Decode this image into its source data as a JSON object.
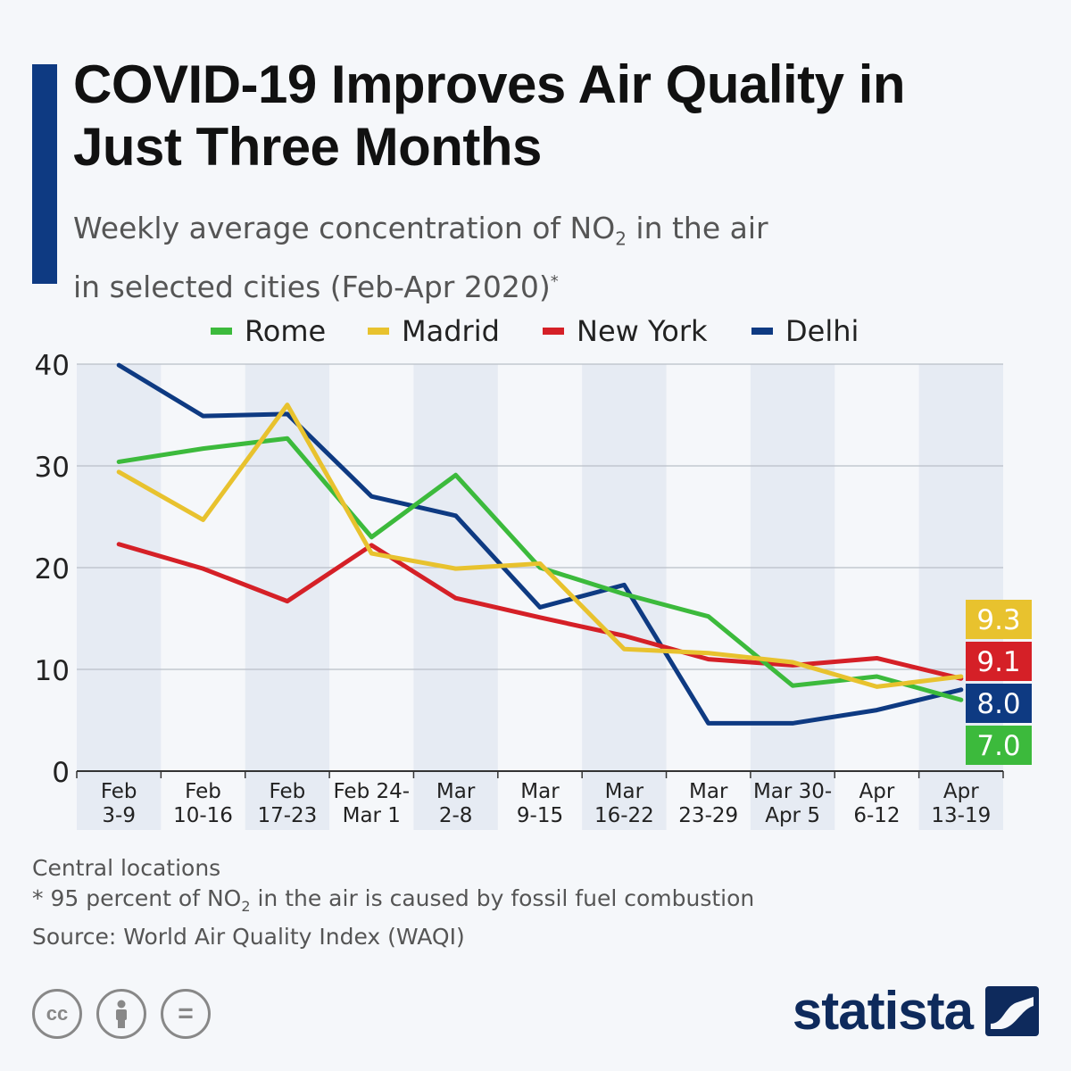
{
  "title": "COVID-19 Improves Air Quality in Just Three Months",
  "subtitle": {
    "line1_pre": "Weekly average concentration of NO",
    "line1_sub": "2",
    "line1_post": " in the air",
    "line2": "in selected cities (Feb-Apr 2020)",
    "line2_sup": "*"
  },
  "legend": [
    "Rome",
    "Madrid",
    "New York",
    "Delhi"
  ],
  "footnotes": {
    "line1": "Central locations",
    "line2_pre": "* 95 percent of NO",
    "line2_sub": "2",
    "line2_post": " in the air is caused by fossil fuel combustion",
    "line3": "Source: World Air Quality Index (WAQI)"
  },
  "brand": "statista",
  "icons": [
    "cc-icon",
    "attribution-icon",
    "no-derivatives-icon"
  ],
  "icon_text": {
    "cc": "cc",
    "nd": "="
  },
  "colors": {
    "accent": "#0e3a82",
    "Rome": "#3cba3c",
    "Madrid": "#e8c22e",
    "New York": "#d52027",
    "Delhi": "#0e3a82",
    "band": "#e6ebf3"
  },
  "chart_data": {
    "type": "line",
    "categories": [
      "Feb 3-9",
      "Feb 10-16",
      "Feb 17-23",
      "Feb 24-Mar 1",
      "Mar 2-8",
      "Mar 9-15",
      "Mar 16-22",
      "Mar 23-29",
      "Mar 30-Apr 5",
      "Apr 6-12",
      "Apr 13-19"
    ],
    "category_lines": [
      [
        "Feb",
        "3-9"
      ],
      [
        "Feb",
        "10-16"
      ],
      [
        "Feb",
        "17-23"
      ],
      [
        "Feb 24-",
        "Mar 1"
      ],
      [
        "Mar",
        "2-8"
      ],
      [
        "Mar",
        "9-15"
      ],
      [
        "Mar",
        "16-22"
      ],
      [
        "Mar",
        "23-29"
      ],
      [
        "Mar 30-",
        "Apr 5"
      ],
      [
        "Apr",
        "6-12"
      ],
      [
        "Apr",
        "13-19"
      ]
    ],
    "ylim": [
      0,
      40
    ],
    "yticks": [
      0,
      10,
      20,
      30,
      40
    ],
    "grid": true,
    "legend_position": "top",
    "series": [
      {
        "name": "Rome",
        "values": [
          30.4,
          31.7,
          32.7,
          23.0,
          29.1,
          20.0,
          17.4,
          15.2,
          8.4,
          9.3,
          7.0
        ]
      },
      {
        "name": "Madrid",
        "values": [
          29.4,
          24.7,
          36.0,
          21.4,
          19.9,
          20.4,
          12.0,
          11.6,
          10.7,
          8.3,
          9.3
        ]
      },
      {
        "name": "New York",
        "values": [
          22.3,
          19.9,
          16.7,
          22.2,
          17.0,
          15.1,
          13.3,
          11.0,
          10.4,
          11.1,
          9.1
        ]
      },
      {
        "name": "Delhi",
        "values": [
          39.9,
          34.9,
          35.1,
          27.0,
          25.1,
          16.1,
          18.3,
          4.7,
          4.7,
          6.0,
          8.0
        ]
      }
    ],
    "end_labels": [
      {
        "series": "Madrid",
        "text": "9.3"
      },
      {
        "series": "New York",
        "text": "9.1"
      },
      {
        "series": "Delhi",
        "text": "8.0"
      },
      {
        "series": "Rome",
        "text": "7.0"
      }
    ]
  }
}
